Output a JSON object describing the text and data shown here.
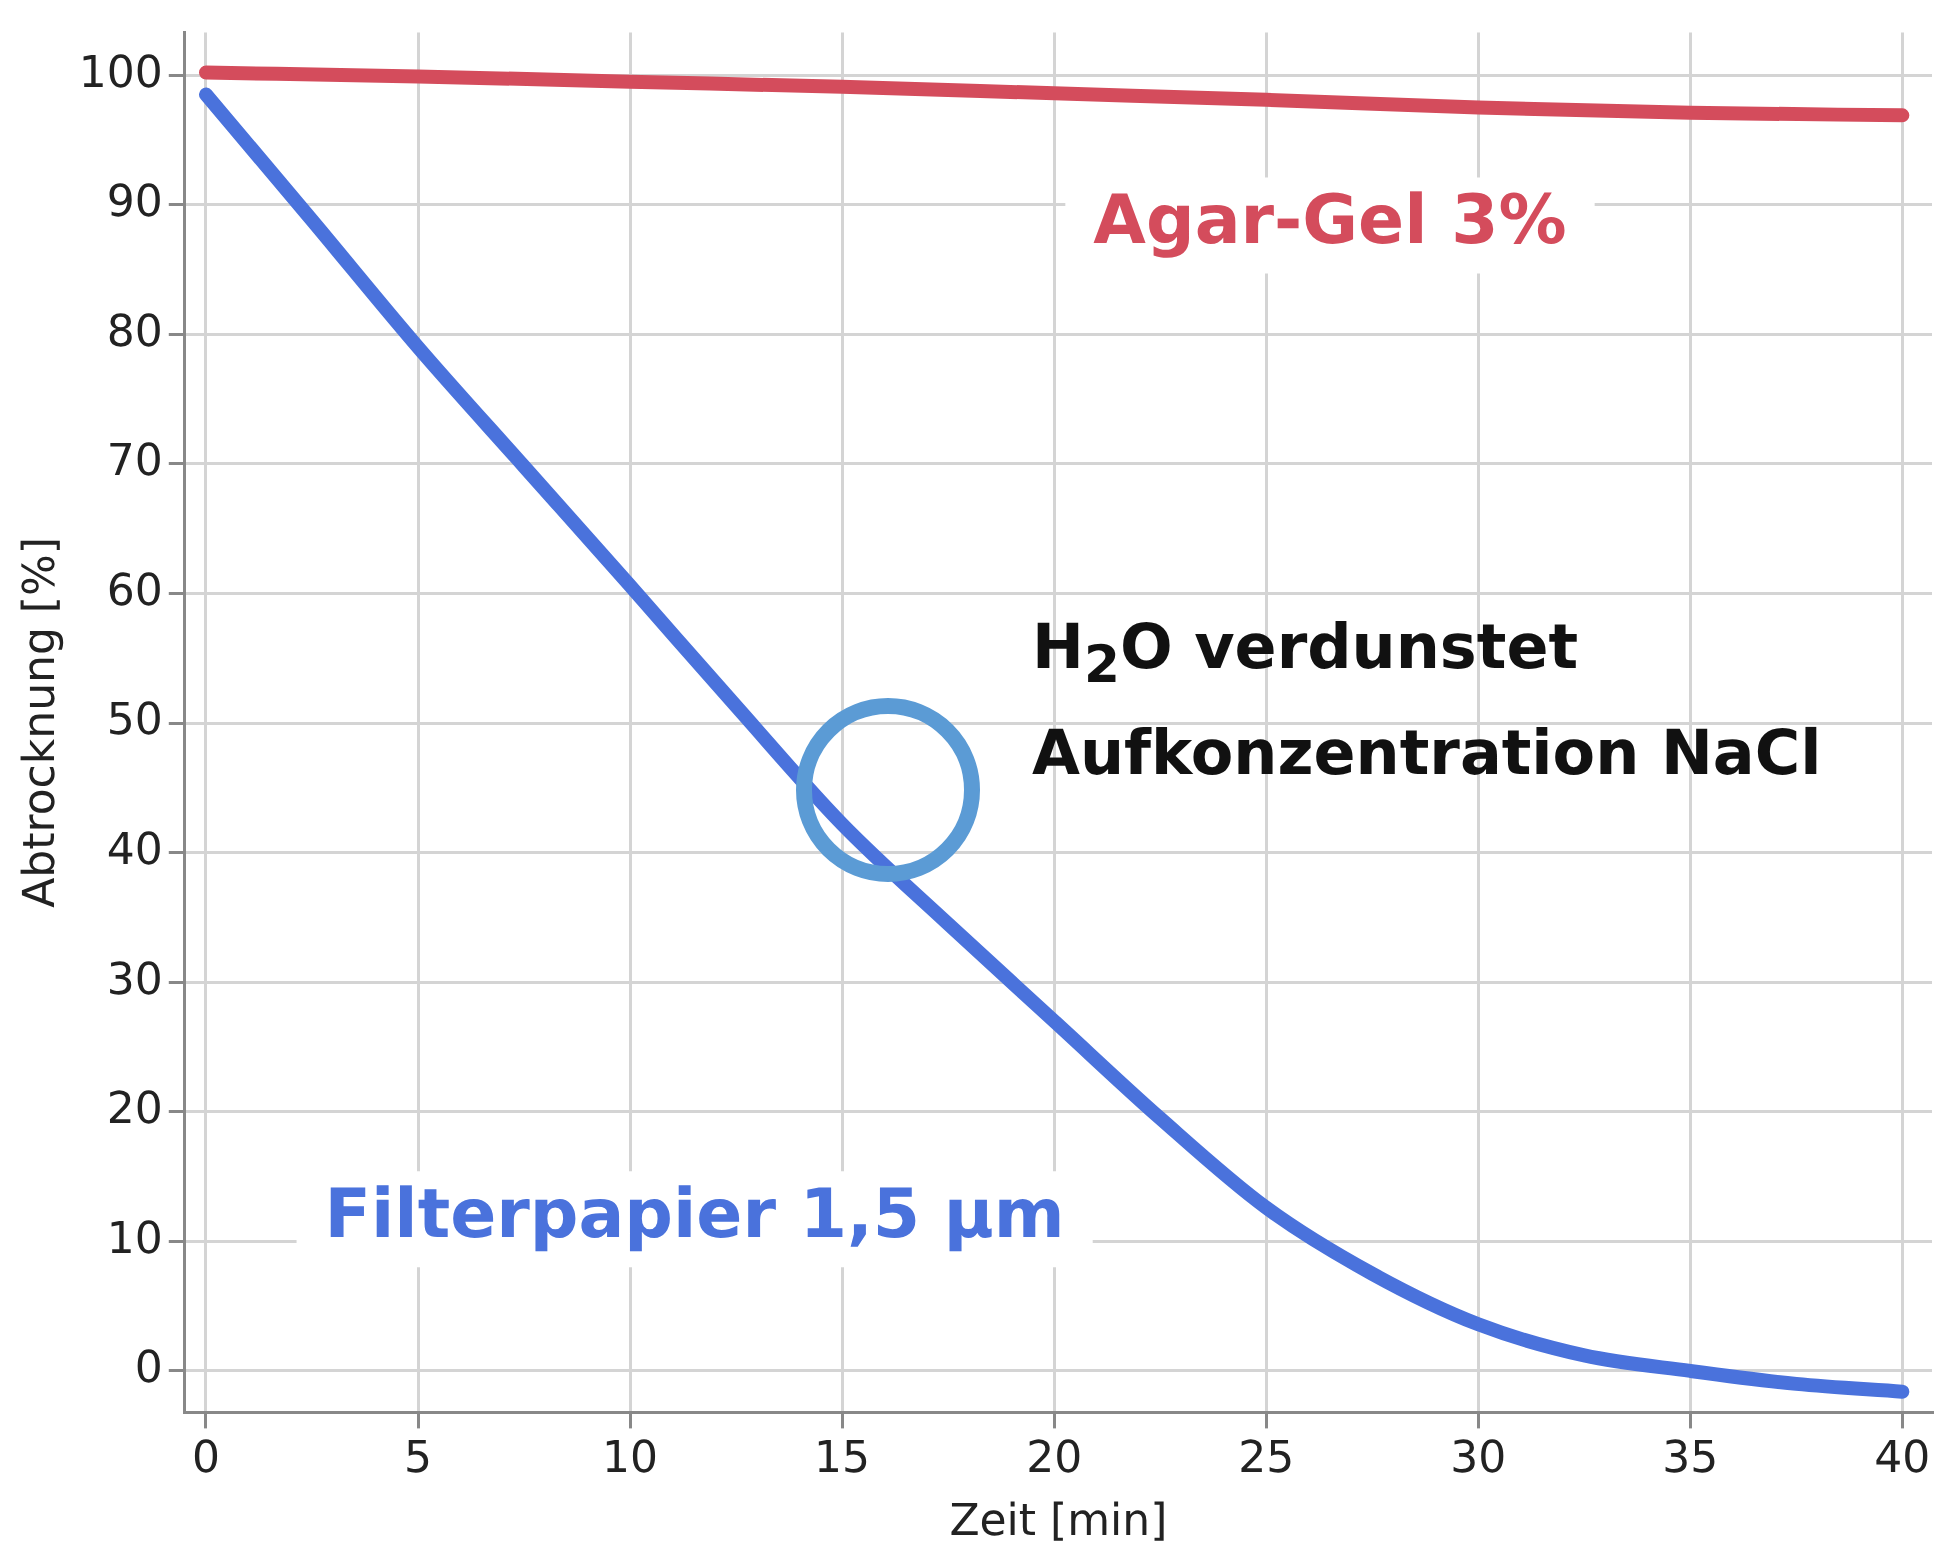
{
  "chart_data": {
    "type": "line",
    "xlabel": "Zeit [min]",
    "ylabel": "Abtrocknung [%]",
    "xlim": [
      -0.5,
      40.7
    ],
    "ylim": [
      -3.2,
      103.3
    ],
    "xticks": [
      0,
      5,
      10,
      15,
      20,
      25,
      30,
      35,
      40
    ],
    "yticks": [
      0,
      10,
      20,
      30,
      40,
      50,
      60,
      70,
      80,
      90,
      100
    ],
    "grid": true,
    "legend": false,
    "marker": "none",
    "line_style": "solid",
    "annotations": [
      "H$_{2}$O verdunstet",
      "Aufkonzentration NaCl"
    ],
    "series": [
      {
        "name": "Agar-Gel 3%",
        "color": "#d44c5c",
        "x": [
          0,
          5,
          10,
          15,
          20,
          25,
          30,
          35,
          40
        ],
        "values": [
          100.2,
          99.9,
          99.5,
          99.1,
          98.6,
          98.1,
          97.5,
          97.1,
          96.9
        ]
      },
      {
        "name": "Filterpapier 1,5 µm",
        "color": "#4a72dc",
        "x": [
          0,
          2.5,
          5,
          7.5,
          10,
          12.5,
          15,
          17.5,
          20,
          22.5,
          25,
          27.5,
          30,
          32.5,
          35,
          37.5,
          40
        ],
        "values": [
          98.5,
          88.8,
          79,
          69.8,
          60.6,
          51.3,
          42.2,
          34.5,
          27,
          19.5,
          12.6,
          7.5,
          3.6,
          1.2,
          0,
          -1,
          -1.6
        ]
      }
    ]
  }
}
